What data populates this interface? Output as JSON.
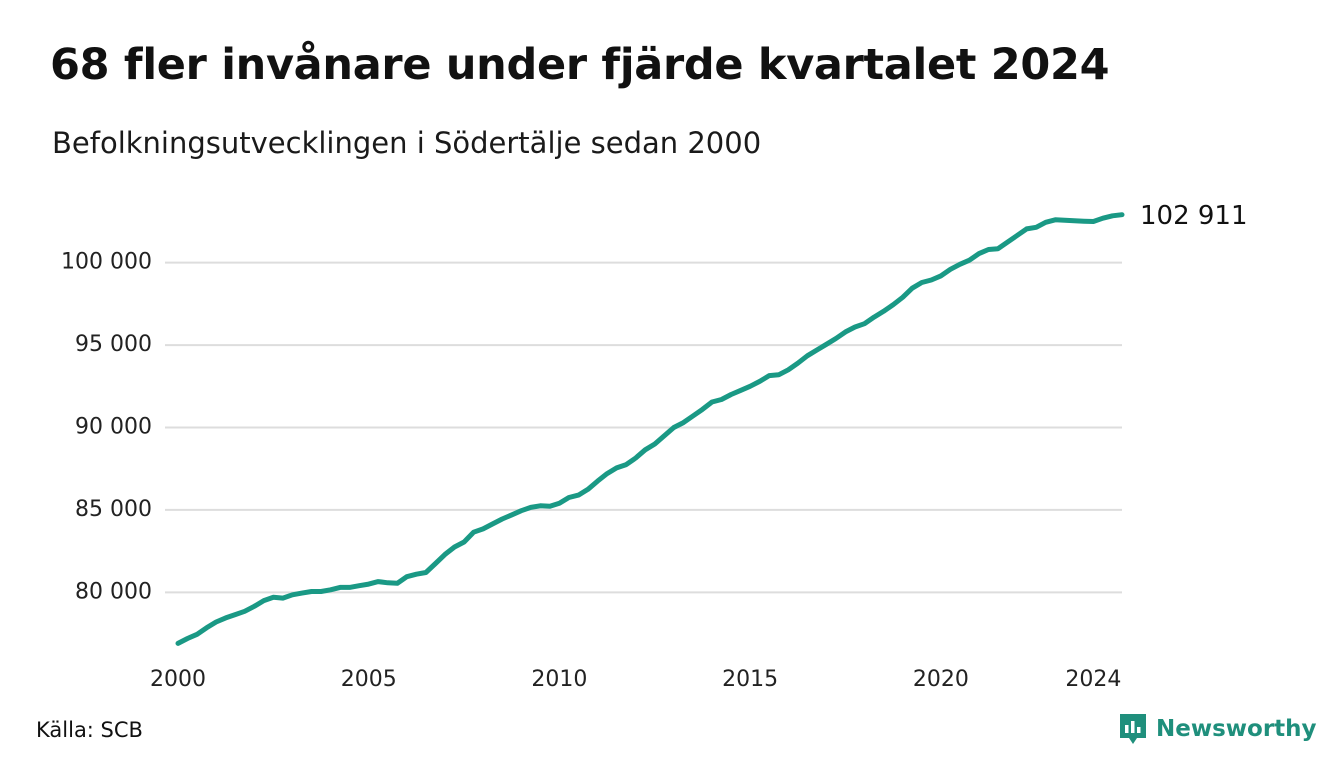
{
  "title": "68 fler invånare under fjärde kvartalet 2024",
  "subtitle": "Befolkningsutvecklingen i Södertälje sedan 2000",
  "source": "Källa: SCB",
  "brand": {
    "name": "Newsworthy",
    "icon": "newsworthy-logo-icon",
    "color": "#1f8f7c"
  },
  "chart_data": {
    "type": "line",
    "series_color": "#1a9985",
    "xlim": [
      2000,
      2024.75
    ],
    "ylim": [
      76500,
      103500
    ],
    "x_ticks": [
      2000,
      2005,
      2010,
      2015,
      2020,
      2024
    ],
    "x_tick_labels": [
      "2000",
      "2005",
      "2010",
      "2015",
      "2020",
      "2024"
    ],
    "y_ticks": [
      80000,
      85000,
      90000,
      95000,
      100000
    ],
    "y_tick_labels": [
      "80 000",
      "85 000",
      "90 000",
      "95 000",
      "100 000"
    ],
    "grid": true,
    "end_label": "102 911",
    "series": [
      {
        "x": [
          2000.0,
          2000.25,
          2000.5,
          2000.75,
          2001.0,
          2001.25,
          2001.5,
          2001.75,
          2002.0,
          2002.25,
          2002.5,
          2002.75,
          2003.0,
          2003.25,
          2003.5,
          2003.75,
          2004.0,
          2004.25,
          2004.5,
          2004.75,
          2005.0,
          2005.25,
          2005.5,
          2005.75,
          2006.0,
          2006.25,
          2006.5,
          2006.75,
          2007.0,
          2007.25,
          2007.5,
          2007.75,
          2008.0,
          2008.25,
          2008.5,
          2008.75,
          2009.0,
          2009.25,
          2009.5,
          2009.75,
          2010.0,
          2010.25,
          2010.5,
          2010.75,
          2011.0,
          2011.25,
          2011.5,
          2011.75,
          2012.0,
          2012.25,
          2012.5,
          2012.75,
          2013.0,
          2013.25,
          2013.5,
          2013.75,
          2014.0,
          2014.25,
          2014.5,
          2014.75,
          2015.0,
          2015.25,
          2015.5,
          2015.75,
          2016.0,
          2016.25,
          2016.5,
          2016.75,
          2017.0,
          2017.25,
          2017.5,
          2017.75,
          2018.0,
          2018.25,
          2018.5,
          2018.75,
          2019.0,
          2019.25,
          2019.5,
          2019.75,
          2020.0,
          2020.25,
          2020.5,
          2020.75,
          2021.0,
          2021.25,
          2021.5,
          2021.75,
          2022.0,
          2022.25,
          2022.5,
          2022.75,
          2023.0,
          2023.25,
          2023.5,
          2023.75,
          2024.0,
          2024.25,
          2024.5,
          2024.75
        ],
        "y": [
          76900,
          77200,
          77450,
          77850,
          78200,
          78450,
          78650,
          78850,
          79150,
          79500,
          79700,
          79650,
          79850,
          79950,
          80050,
          80050,
          80150,
          80300,
          80300,
          80400,
          80500,
          80650,
          80580,
          80550,
          80950,
          81100,
          81200,
          81750,
          82300,
          82750,
          83050,
          83650,
          83850,
          84150,
          84450,
          84700,
          84950,
          85150,
          85250,
          85220,
          85400,
          85750,
          85900,
          86250,
          86750,
          87200,
          87550,
          87750,
          88150,
          88650,
          89000,
          89500,
          90000,
          90300,
          90700,
          91100,
          91550,
          91700,
          92000,
          92250,
          92500,
          92800,
          93150,
          93200,
          93500,
          93900,
          94350,
          94700,
          95050,
          95400,
          95800,
          96100,
          96300,
          96700,
          97050,
          97450,
          97900,
          98450,
          98800,
          98950,
          99200,
          99600,
          99900,
          100150,
          100550,
          100800,
          100850,
          101250,
          101650,
          102050,
          102150,
          102450,
          102600,
          102580,
          102550,
          102520,
          102500,
          102700,
          102843,
          102911
        ]
      }
    ]
  }
}
